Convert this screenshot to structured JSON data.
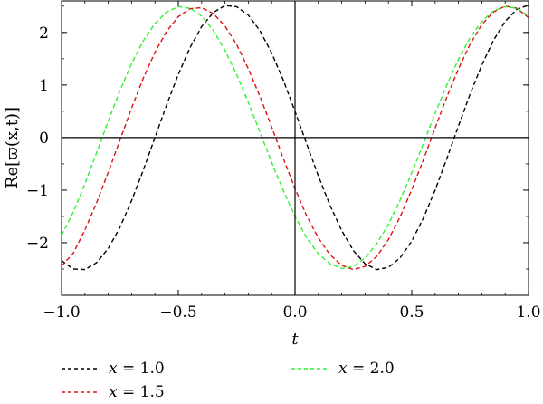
{
  "chart_data": {
    "type": "line",
    "title": "",
    "xlabel": "t",
    "ylabel": "Re[ϖ(x,t)]",
    "xlim": [
      -1.0,
      1.0
    ],
    "ylim": [
      -3.0,
      2.6
    ],
    "x_ticks": [
      -1.0,
      -0.5,
      0.0,
      0.5,
      1.0
    ],
    "x_tick_labels": [
      "−1.0",
      "−0.5",
      "0.0",
      "0.5",
      "1.0"
    ],
    "y_ticks": [
      -2,
      -1,
      0,
      1,
      2
    ],
    "y_tick_labels": [
      "−2",
      "−1",
      "0",
      "1",
      "2"
    ],
    "grid": false,
    "legend_position": "bottom",
    "series": [
      {
        "name": "x = 1.0",
        "color": "#000000",
        "dash": "dashed",
        "x": [
          -1.0,
          -0.95,
          -0.9,
          -0.85,
          -0.8,
          -0.75,
          -0.7,
          -0.65,
          -0.6,
          -0.55,
          -0.5,
          -0.45,
          -0.4,
          -0.35,
          -0.3,
          -0.25,
          -0.2,
          -0.15,
          -0.1,
          -0.05,
          0.0,
          0.05,
          0.1,
          0.15,
          0.2,
          0.25,
          0.3,
          0.35,
          0.4,
          0.45,
          0.5,
          0.55,
          0.6,
          0.65,
          0.7,
          0.75,
          0.8,
          0.85,
          0.9,
          0.95,
          1.0
        ],
        "y": [
          -2.34,
          -2.5,
          -2.51,
          -2.38,
          -2.11,
          -1.71,
          -1.2,
          -0.62,
          0.0,
          0.62,
          1.2,
          1.71,
          2.11,
          2.38,
          2.51,
          2.49,
          2.33,
          2.03,
          1.61,
          1.09,
          0.5,
          -0.12,
          -0.73,
          -1.29,
          -1.77,
          -2.15,
          -2.4,
          -2.51,
          -2.47,
          -2.29,
          -1.97,
          -1.53,
          -1.0,
          -0.4,
          0.22,
          0.83,
          1.38,
          1.85,
          2.21,
          2.44,
          2.52
        ]
      },
      {
        "name": "x = 1.5",
        "color": "#dd1111",
        "dash": "dashed",
        "x": [
          -1.0,
          -0.95,
          -0.9,
          -0.85,
          -0.8,
          -0.75,
          -0.7,
          -0.65,
          -0.6,
          -0.55,
          -0.5,
          -0.45,
          -0.4,
          -0.35,
          -0.3,
          -0.25,
          -0.2,
          -0.15,
          -0.1,
          -0.05,
          0.0,
          0.05,
          0.1,
          0.15,
          0.2,
          0.25,
          0.3,
          0.35,
          0.4,
          0.45,
          0.5,
          0.55,
          0.6,
          0.65,
          0.7,
          0.75,
          0.8,
          0.85,
          0.9,
          0.95,
          1.0
        ],
        "y": [
          -2.44,
          -2.2,
          -1.76,
          -1.24,
          -0.66,
          -0.05,
          0.56,
          1.13,
          1.62,
          2.02,
          2.3,
          2.45,
          2.47,
          2.36,
          2.12,
          1.77,
          1.31,
          0.78,
          0.2,
          -0.4,
          -0.97,
          -1.49,
          -1.91,
          -2.23,
          -2.43,
          -2.51,
          -2.45,
          -2.26,
          -1.94,
          -1.51,
          -0.99,
          -0.42,
          0.18,
          0.77,
          1.31,
          1.78,
          2.15,
          2.39,
          2.5,
          2.46,
          2.28
        ]
      },
      {
        "name": "x = 2.0",
        "color": "#33ee33",
        "dash": "dashed",
        "x": [
          -1.0,
          -0.95,
          -0.9,
          -0.85,
          -0.8,
          -0.75,
          -0.7,
          -0.65,
          -0.6,
          -0.55,
          -0.5,
          -0.45,
          -0.4,
          -0.35,
          -0.3,
          -0.25,
          -0.2,
          -0.15,
          -0.1,
          -0.05,
          0.0,
          0.05,
          0.1,
          0.15,
          0.2,
          0.25,
          0.3,
          0.35,
          0.4,
          0.45,
          0.5,
          0.55,
          0.6,
          0.65,
          0.7,
          0.75,
          0.8,
          0.85,
          0.9,
          0.95,
          1.0
        ],
        "y": [
          -1.86,
          -1.42,
          -0.88,
          -0.29,
          0.31,
          0.89,
          1.41,
          1.84,
          2.17,
          2.39,
          2.49,
          2.46,
          2.31,
          2.04,
          1.66,
          1.2,
          0.67,
          0.1,
          -0.47,
          -1.01,
          -1.5,
          -1.91,
          -2.21,
          -2.4,
          -2.49,
          -2.45,
          -2.29,
          -2.02,
          -1.65,
          -1.19,
          -0.67,
          -0.11,
          0.46,
          1.0,
          1.49,
          1.9,
          2.21,
          2.41,
          2.49,
          2.46,
          2.31
        ]
      }
    ]
  }
}
